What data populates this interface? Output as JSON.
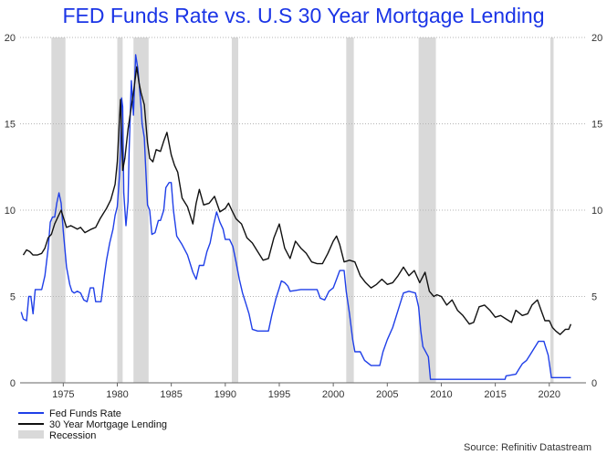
{
  "chart_data": {
    "type": "line",
    "title": "FED Funds Rate vs. U.S 30 Year Mortgage Lending",
    "source": "Source: Refinitiv Datastream",
    "xlim": [
      1971.0,
      2023.4
    ],
    "ylim": [
      0,
      20
    ],
    "x_ticks": [
      1975,
      1980,
      1985,
      1990,
      1995,
      2000,
      2005,
      2010,
      2015,
      2020
    ],
    "y_ticks": [
      0,
      5,
      10,
      15,
      20
    ],
    "grid": "horizontal dotted",
    "legend_position": "bottom-left",
    "recessions": [
      [
        1973.9,
        1975.2
      ],
      [
        1980.0,
        1980.5
      ],
      [
        1981.5,
        1982.9
      ],
      [
        1990.6,
        1991.2
      ],
      [
        2001.2,
        2001.9
      ],
      [
        2007.9,
        2009.5
      ],
      [
        2020.1,
        2020.4
      ]
    ],
    "series": [
      {
        "name": "Fed Funds Rate",
        "color": "#1f3fe8",
        "points": [
          [
            1971.1,
            4.1
          ],
          [
            1971.3,
            3.7
          ],
          [
            1971.6,
            3.6
          ],
          [
            1971.8,
            5.0
          ],
          [
            1972.0,
            5.0
          ],
          [
            1972.2,
            4.0
          ],
          [
            1972.4,
            5.4
          ],
          [
            1972.8,
            5.4
          ],
          [
            1973.0,
            5.4
          ],
          [
            1973.3,
            6.2
          ],
          [
            1973.6,
            7.8
          ],
          [
            1973.8,
            9.3
          ],
          [
            1974.0,
            9.6
          ],
          [
            1974.2,
            9.6
          ],
          [
            1974.4,
            10.4
          ],
          [
            1974.6,
            11.0
          ],
          [
            1974.8,
            10.4
          ],
          [
            1975.0,
            8.8
          ],
          [
            1975.3,
            6.7
          ],
          [
            1975.6,
            5.7
          ],
          [
            1975.8,
            5.3
          ],
          [
            1976.0,
            5.2
          ],
          [
            1976.3,
            5.3
          ],
          [
            1976.6,
            5.2
          ],
          [
            1976.9,
            4.8
          ],
          [
            1977.2,
            4.7
          ],
          [
            1977.5,
            5.5
          ],
          [
            1977.8,
            5.5
          ],
          [
            1978.0,
            4.7
          ],
          [
            1978.5,
            4.7
          ],
          [
            1978.8,
            6.2
          ],
          [
            1979.0,
            7.1
          ],
          [
            1979.3,
            8.1
          ],
          [
            1979.6,
            8.9
          ],
          [
            1979.8,
            9.7
          ],
          [
            1980.0,
            10.2
          ],
          [
            1980.2,
            12.0
          ],
          [
            1980.3,
            13.5
          ],
          [
            1980.4,
            16.5
          ],
          [
            1980.5,
            16.0
          ],
          [
            1980.6,
            11.0
          ],
          [
            1980.8,
            9.1
          ],
          [
            1981.0,
            10.5
          ],
          [
            1981.1,
            13.5
          ],
          [
            1981.3,
            17.5
          ],
          [
            1981.5,
            15.5
          ],
          [
            1981.7,
            19.0
          ],
          [
            1981.9,
            18.2
          ],
          [
            1982.0,
            17.5
          ],
          [
            1982.2,
            16.0
          ],
          [
            1982.3,
            15.0
          ],
          [
            1982.5,
            14.2
          ],
          [
            1982.6,
            12.8
          ],
          [
            1982.8,
            10.3
          ],
          [
            1983.0,
            10.0
          ],
          [
            1983.2,
            8.6
          ],
          [
            1983.5,
            8.7
          ],
          [
            1983.8,
            9.4
          ],
          [
            1984.0,
            9.4
          ],
          [
            1984.3,
            10.0
          ],
          [
            1984.5,
            11.3
          ],
          [
            1984.8,
            11.6
          ],
          [
            1985.0,
            11.6
          ],
          [
            1985.2,
            10.0
          ],
          [
            1985.5,
            8.5
          ],
          [
            1986.0,
            8.0
          ],
          [
            1986.5,
            7.4
          ],
          [
            1987.0,
            6.4
          ],
          [
            1987.3,
            6.0
          ],
          [
            1987.6,
            6.8
          ],
          [
            1988.0,
            6.8
          ],
          [
            1988.3,
            7.6
          ],
          [
            1988.6,
            8.1
          ],
          [
            1988.9,
            9.1
          ],
          [
            1989.2,
            9.9
          ],
          [
            1989.5,
            9.3
          ],
          [
            1989.8,
            8.9
          ],
          [
            1990.0,
            8.3
          ],
          [
            1990.4,
            8.3
          ],
          [
            1990.7,
            7.9
          ],
          [
            1991.0,
            7.0
          ],
          [
            1991.3,
            6.0
          ],
          [
            1991.6,
            5.2
          ],
          [
            1991.9,
            4.6
          ],
          [
            1992.2,
            4.0
          ],
          [
            1992.5,
            3.1
          ],
          [
            1993.0,
            3.0
          ],
          [
            1994.0,
            3.0
          ],
          [
            1994.3,
            3.9
          ],
          [
            1994.7,
            4.9
          ],
          [
            1995.0,
            5.5
          ],
          [
            1995.2,
            5.9
          ],
          [
            1995.5,
            5.8
          ],
          [
            1995.8,
            5.6
          ],
          [
            1996.0,
            5.3
          ],
          [
            1997.0,
            5.4
          ],
          [
            1998.0,
            5.4
          ],
          [
            1998.5,
            5.4
          ],
          [
            1998.8,
            4.9
          ],
          [
            1999.2,
            4.8
          ],
          [
            1999.6,
            5.3
          ],
          [
            2000.0,
            5.5
          ],
          [
            2000.3,
            6.0
          ],
          [
            2000.6,
            6.5
          ],
          [
            2001.0,
            6.5
          ],
          [
            2001.2,
            5.3
          ],
          [
            2001.5,
            4.0
          ],
          [
            2001.8,
            2.5
          ],
          [
            2002.0,
            1.8
          ],
          [
            2002.5,
            1.8
          ],
          [
            2002.9,
            1.3
          ],
          [
            2003.5,
            1.0
          ],
          [
            2004.3,
            1.0
          ],
          [
            2004.6,
            1.8
          ],
          [
            2005.0,
            2.5
          ],
          [
            2005.5,
            3.2
          ],
          [
            2006.0,
            4.2
          ],
          [
            2006.5,
            5.2
          ],
          [
            2007.0,
            5.3
          ],
          [
            2007.6,
            5.2
          ],
          [
            2007.9,
            4.4
          ],
          [
            2008.1,
            3.0
          ],
          [
            2008.3,
            2.1
          ],
          [
            2008.8,
            1.5
          ],
          [
            2009.0,
            0.2
          ],
          [
            2015.9,
            0.2
          ],
          [
            2016.0,
            0.4
          ],
          [
            2016.9,
            0.5
          ],
          [
            2017.2,
            0.8
          ],
          [
            2017.5,
            1.1
          ],
          [
            2017.9,
            1.3
          ],
          [
            2018.2,
            1.6
          ],
          [
            2018.5,
            1.9
          ],
          [
            2018.8,
            2.2
          ],
          [
            2019.0,
            2.4
          ],
          [
            2019.5,
            2.4
          ],
          [
            2019.7,
            2.0
          ],
          [
            2019.9,
            1.6
          ],
          [
            2020.2,
            0.3
          ],
          [
            2022.0,
            0.3
          ]
        ]
      },
      {
        "name": "30 Year Mortgage Lending",
        "color": "#111111",
        "points": [
          [
            1971.3,
            7.4
          ],
          [
            1971.6,
            7.7
          ],
          [
            1971.9,
            7.6
          ],
          [
            1972.2,
            7.4
          ],
          [
            1972.6,
            7.4
          ],
          [
            1973.0,
            7.5
          ],
          [
            1973.3,
            7.8
          ],
          [
            1973.6,
            8.4
          ],
          [
            1973.9,
            8.6
          ],
          [
            1974.2,
            9.2
          ],
          [
            1974.5,
            9.6
          ],
          [
            1974.8,
            10.0
          ],
          [
            1975.0,
            9.6
          ],
          [
            1975.3,
            9.0
          ],
          [
            1975.7,
            9.1
          ],
          [
            1976.0,
            9.0
          ],
          [
            1976.3,
            8.9
          ],
          [
            1976.6,
            9.0
          ],
          [
            1977.0,
            8.7
          ],
          [
            1977.3,
            8.8
          ],
          [
            1977.6,
            8.9
          ],
          [
            1978.0,
            9.0
          ],
          [
            1978.4,
            9.5
          ],
          [
            1978.8,
            9.9
          ],
          [
            1979.0,
            10.1
          ],
          [
            1979.4,
            10.6
          ],
          [
            1979.8,
            11.5
          ],
          [
            1980.0,
            12.8
          ],
          [
            1980.2,
            15.3
          ],
          [
            1980.3,
            16.4
          ],
          [
            1980.5,
            12.3
          ],
          [
            1980.7,
            13.0
          ],
          [
            1981.0,
            14.7
          ],
          [
            1981.3,
            16.0
          ],
          [
            1981.5,
            16.8
          ],
          [
            1981.8,
            18.3
          ],
          [
            1982.0,
            17.4
          ],
          [
            1982.2,
            16.8
          ],
          [
            1982.5,
            16.1
          ],
          [
            1982.8,
            13.9
          ],
          [
            1983.0,
            13.0
          ],
          [
            1983.3,
            12.8
          ],
          [
            1983.6,
            13.5
          ],
          [
            1984.0,
            13.4
          ],
          [
            1984.3,
            14.0
          ],
          [
            1984.6,
            14.5
          ],
          [
            1985.0,
            13.2
          ],
          [
            1985.3,
            12.6
          ],
          [
            1985.6,
            12.2
          ],
          [
            1986.0,
            10.7
          ],
          [
            1986.5,
            10.2
          ],
          [
            1987.0,
            9.2
          ],
          [
            1987.3,
            10.4
          ],
          [
            1987.6,
            11.2
          ],
          [
            1988.0,
            10.3
          ],
          [
            1988.5,
            10.4
          ],
          [
            1989.0,
            10.8
          ],
          [
            1989.5,
            9.9
          ],
          [
            1990.0,
            10.1
          ],
          [
            1990.3,
            10.4
          ],
          [
            1990.6,
            10.0
          ],
          [
            1991.0,
            9.5
          ],
          [
            1991.5,
            9.2
          ],
          [
            1992.0,
            8.4
          ],
          [
            1992.5,
            8.1
          ],
          [
            1993.0,
            7.6
          ],
          [
            1993.5,
            7.1
          ],
          [
            1994.0,
            7.2
          ],
          [
            1994.5,
            8.4
          ],
          [
            1995.0,
            9.2
          ],
          [
            1995.5,
            7.8
          ],
          [
            1996.0,
            7.2
          ],
          [
            1996.5,
            8.2
          ],
          [
            1997.0,
            7.8
          ],
          [
            1997.5,
            7.5
          ],
          [
            1998.0,
            7.0
          ],
          [
            1998.5,
            6.9
          ],
          [
            1999.0,
            6.9
          ],
          [
            1999.5,
            7.5
          ],
          [
            2000.0,
            8.2
          ],
          [
            2000.3,
            8.5
          ],
          [
            2000.6,
            8.0
          ],
          [
            2001.0,
            7.0
          ],
          [
            2001.5,
            7.1
          ],
          [
            2002.0,
            7.0
          ],
          [
            2002.5,
            6.2
          ],
          [
            2003.0,
            5.8
          ],
          [
            2003.5,
            5.5
          ],
          [
            2004.0,
            5.7
          ],
          [
            2004.5,
            6.0
          ],
          [
            2005.0,
            5.7
          ],
          [
            2005.5,
            5.8
          ],
          [
            2006.0,
            6.2
          ],
          [
            2006.5,
            6.7
          ],
          [
            2007.0,
            6.2
          ],
          [
            2007.5,
            6.5
          ],
          [
            2008.0,
            5.8
          ],
          [
            2008.5,
            6.4
          ],
          [
            2008.9,
            5.3
          ],
          [
            2009.3,
            5.0
          ],
          [
            2009.6,
            5.1
          ],
          [
            2010.0,
            5.0
          ],
          [
            2010.5,
            4.5
          ],
          [
            2011.0,
            4.8
          ],
          [
            2011.5,
            4.2
          ],
          [
            2012.0,
            3.9
          ],
          [
            2012.6,
            3.4
          ],
          [
            2013.0,
            3.5
          ],
          [
            2013.5,
            4.4
          ],
          [
            2014.0,
            4.5
          ],
          [
            2014.5,
            4.2
          ],
          [
            2015.0,
            3.8
          ],
          [
            2015.5,
            3.9
          ],
          [
            2016.0,
            3.7
          ],
          [
            2016.5,
            3.5
          ],
          [
            2016.9,
            4.2
          ],
          [
            2017.5,
            3.9
          ],
          [
            2018.0,
            4.0
          ],
          [
            2018.4,
            4.5
          ],
          [
            2018.9,
            4.8
          ],
          [
            2019.3,
            4.1
          ],
          [
            2019.6,
            3.6
          ],
          [
            2020.0,
            3.6
          ],
          [
            2020.3,
            3.2
          ],
          [
            2020.6,
            3.0
          ],
          [
            2021.0,
            2.8
          ],
          [
            2021.5,
            3.1
          ],
          [
            2021.8,
            3.1
          ],
          [
            2022.0,
            3.4
          ]
        ]
      }
    ],
    "legend": [
      {
        "label": "Fed Funds Rate",
        "kind": "line",
        "color": "#1f3fe8"
      },
      {
        "label": "30 Year Mortgage Lending",
        "kind": "line",
        "color": "#111111"
      },
      {
        "label": "Recession",
        "kind": "band",
        "color": "#d9d9d9"
      }
    ]
  }
}
